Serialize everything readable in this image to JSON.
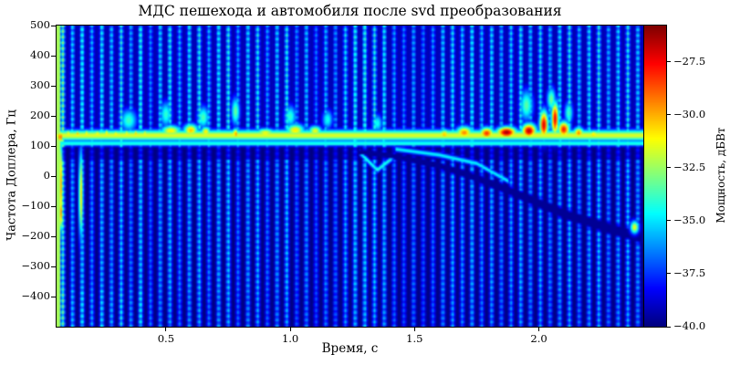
{
  "title": "МДС пешехода и автомобиля после svd преобразования",
  "axes": {
    "x": {
      "label": "Время, с",
      "ticks": [
        0.5,
        1.0,
        1.5,
        2.0
      ],
      "tick_labels": [
        "0.5",
        "1.0",
        "1.5",
        "2.0"
      ]
    },
    "y": {
      "label": "Частота Доплера, Гц",
      "ticks": [
        500,
        400,
        300,
        200,
        100,
        0,
        -100,
        -200,
        -300,
        -400
      ],
      "tick_labels": [
        "500",
        "400",
        "300",
        "200",
        "100",
        "0",
        "−100",
        "−200",
        "−300",
        "−400"
      ]
    },
    "colorbar": {
      "label": "Мощность, дБВт",
      "ticks": [
        -27.5,
        -30.0,
        -32.5,
        -35.0,
        -37.5,
        -40.0
      ],
      "tick_labels": [
        "−27.5",
        "−30.0",
        "−32.5",
        "−35.0",
        "−37.5",
        "−40.0"
      ]
    }
  },
  "chart_data": {
    "type": "heatmap",
    "subtype": "micro-doppler-spectrogram",
    "title": "МДС пешехода и автомобиля после svd преобразования",
    "xlabel": "Время, с",
    "ylabel": "Частота Доплера, Гц",
    "zlabel": "Мощность, дБВт",
    "colormap": "jet",
    "x_range_s": [
      0.06,
      2.42
    ],
    "y_range_hz": [
      -500,
      500
    ],
    "z_range_dbw": [
      -40.0,
      -25.8
    ],
    "background_dbw": -40.0,
    "grid": false,
    "legend": "none",
    "pulse_stripes": {
      "comment": "quasi-periodic full-height vertical cyan pulses [time_s, peak_dbw]",
      "sigma_t_s": 0.0065,
      "items": [
        [
          0.085,
          -33.2
        ],
        [
          0.124,
          -34.4
        ],
        [
          0.163,
          -33.6
        ],
        [
          0.202,
          -34.9
        ],
        [
          0.242,
          -33.9
        ],
        [
          0.281,
          -34.6
        ],
        [
          0.32,
          -33.7
        ],
        [
          0.359,
          -35.1
        ],
        [
          0.398,
          -33.5
        ],
        [
          0.438,
          -35.6
        ],
        [
          0.477,
          -34.4
        ],
        [
          0.516,
          -33.8
        ],
        [
          0.555,
          -35.0
        ],
        [
          0.594,
          -34.1
        ],
        [
          0.634,
          -33.7
        ],
        [
          0.673,
          -34.9
        ],
        [
          0.712,
          -34.0
        ],
        [
          0.751,
          -33.6
        ],
        [
          0.79,
          -35.2
        ],
        [
          0.83,
          -34.3
        ],
        [
          0.869,
          -33.9
        ],
        [
          0.908,
          -35.3
        ],
        [
          0.947,
          -34.5
        ],
        [
          0.986,
          -33.8
        ],
        [
          1.026,
          -35.6
        ],
        [
          1.065,
          -34.7
        ],
        [
          1.104,
          -35.9
        ],
        [
          1.143,
          -34.9
        ],
        [
          1.182,
          -35.5
        ],
        [
          1.222,
          -34.3
        ],
        [
          1.261,
          -33.6
        ],
        [
          1.3,
          -33.4
        ],
        [
          1.339,
          -33.7
        ],
        [
          1.378,
          -34.0
        ],
        [
          1.418,
          -35.3
        ],
        [
          1.457,
          -35.8
        ],
        [
          1.496,
          -35.2
        ],
        [
          1.535,
          -35.9
        ],
        [
          1.574,
          -35.4
        ],
        [
          1.614,
          -34.6
        ],
        [
          1.653,
          -34.1
        ],
        [
          1.692,
          -34.6
        ],
        [
          1.731,
          -34.0
        ],
        [
          1.77,
          -34.8
        ],
        [
          1.81,
          -34.2
        ],
        [
          1.849,
          -35.0
        ],
        [
          1.888,
          -34.4
        ],
        [
          1.927,
          -33.9
        ],
        [
          1.966,
          -34.7
        ],
        [
          2.006,
          -34.1
        ],
        [
          2.045,
          -34.9
        ],
        [
          2.084,
          -34.3
        ],
        [
          2.123,
          -33.8
        ],
        [
          2.162,
          -34.8
        ],
        [
          2.202,
          -34.2
        ],
        [
          2.241,
          -33.7
        ],
        [
          2.28,
          -35.0
        ],
        [
          2.319,
          -34.3
        ],
        [
          2.358,
          -33.8
        ],
        [
          2.398,
          -34.5
        ]
      ]
    },
    "pedestrian_band": {
      "comment": "continuous torso line of the pedestrian",
      "f_center_hz": 135,
      "sigma_f_hz": 14,
      "dbw": -31.6,
      "underline_f_hz": 108,
      "underline_sigma_hz": 6,
      "underline_dbw": -33.8,
      "dark_lane_hz": [
        55,
        95
      ]
    },
    "hotspots": [
      [
        0.075,
        130,
        0.01,
        16,
        -28.8
      ],
      [
        0.105,
        142,
        0.007,
        9,
        -30.6
      ],
      [
        0.144,
        140,
        0.007,
        9,
        -30.2
      ],
      [
        0.183,
        142,
        0.007,
        9,
        -30.8
      ],
      [
        0.222,
        141,
        0.007,
        9,
        -30.4
      ],
      [
        0.262,
        143,
        0.007,
        9,
        -30.9
      ],
      [
        0.301,
        140,
        0.007,
        9,
        -30.3
      ],
      [
        0.34,
        142,
        0.007,
        9,
        -31.0
      ],
      [
        0.379,
        141,
        0.007,
        9,
        -30.6
      ],
      [
        0.418,
        142,
        0.007,
        9,
        -30.9
      ],
      [
        0.52,
        150,
        0.03,
        14,
        -30.8
      ],
      [
        0.6,
        152,
        0.022,
        16,
        -30.2
      ],
      [
        0.66,
        147,
        0.015,
        13,
        -30.8
      ],
      [
        0.78,
        140,
        0.01,
        14,
        -29.6
      ],
      [
        0.9,
        144,
        0.03,
        11,
        -31.2
      ],
      [
        1.02,
        152,
        0.028,
        16,
        -30.8
      ],
      [
        1.1,
        150,
        0.02,
        13,
        -31.3
      ],
      [
        1.3,
        134,
        0.025,
        10,
        -31.6
      ],
      [
        1.45,
        132,
        0.02,
        10,
        -31.8
      ],
      [
        1.62,
        138,
        0.018,
        13,
        -30.2
      ],
      [
        1.7,
        144,
        0.025,
        16,
        -29.4
      ],
      [
        1.79,
        142,
        0.022,
        15,
        -28.2
      ],
      [
        1.87,
        145,
        0.03,
        14,
        -26.2
      ],
      [
        1.96,
        150,
        0.022,
        18,
        -26.6
      ],
      [
        2.02,
        170,
        0.013,
        35,
        -27.0
      ],
      [
        2.065,
        190,
        0.011,
        42,
        -27.2
      ],
      [
        2.1,
        155,
        0.018,
        20,
        -27.8
      ],
      [
        2.16,
        143,
        0.016,
        14,
        -29.4
      ],
      [
        2.22,
        138,
        0.016,
        11,
        -30.6
      ],
      [
        2.3,
        132,
        0.015,
        10,
        -32.0
      ]
    ],
    "upper_bumps": [
      [
        0.35,
        185,
        0.025,
        28,
        -33.8
      ],
      [
        0.5,
        205,
        0.018,
        32,
        -34.0
      ],
      [
        0.65,
        195,
        0.018,
        28,
        -33.6
      ],
      [
        0.78,
        215,
        0.013,
        35,
        -33.2
      ],
      [
        1.0,
        198,
        0.018,
        28,
        -34.0
      ],
      [
        1.15,
        188,
        0.016,
        24,
        -34.4
      ],
      [
        1.35,
        175,
        0.016,
        22,
        -34.4
      ],
      [
        1.95,
        235,
        0.02,
        38,
        -33.4
      ],
      [
        2.05,
        255,
        0.013,
        30,
        -33.0
      ],
      [
        2.12,
        210,
        0.013,
        28,
        -33.8
      ]
    ],
    "left_edge": {
      "column_t_max_s": 0.072,
      "column_dbw": -32.4,
      "verticals": [
        [
          0.078,
          -30,
          0.006,
          115,
          -30.2
        ],
        [
          0.158,
          -60,
          0.0065,
          110,
          -30.8
        ],
        [
          0.078,
          -120,
          0.005,
          45,
          -29.8
        ]
      ]
    },
    "car_track": {
      "comment": "dark decelerating automobile doppler track [t_s, f_hz]",
      "dbw": -39.7,
      "points": [
        [
          1.28,
          80
        ],
        [
          1.4,
          68
        ],
        [
          1.5,
          52
        ],
        [
          1.6,
          34
        ],
        [
          1.7,
          8
        ],
        [
          1.8,
          -22
        ],
        [
          1.9,
          -55
        ],
        [
          2.0,
          -90
        ],
        [
          2.1,
          -125
        ],
        [
          2.2,
          -152
        ],
        [
          2.3,
          -178
        ],
        [
          2.42,
          -205
        ]
      ],
      "sigma_hz": [
        8,
        9,
        10,
        11,
        12,
        14,
        15,
        16,
        17,
        18,
        19,
        20
      ]
    },
    "cyan_lines": [
      {
        "points": [
          [
            1.28,
            78
          ],
          [
            1.35,
            20
          ],
          [
            1.42,
            66
          ]
        ],
        "sigma_hz": 7,
        "dbw": -34.2
      },
      {
        "points": [
          [
            1.42,
            90
          ],
          [
            1.6,
            70
          ],
          [
            1.75,
            42
          ],
          [
            1.88,
            -18
          ]
        ],
        "sigma_hz": 6,
        "dbw": -34.6
      }
    ],
    "end_spot": [
      2.385,
      -170,
      0.013,
      16,
      -31.3
    ],
    "corner_boost": {
      "t_max_s": 0.45,
      "f_max_hz": -380,
      "gain": 1.18
    }
  }
}
